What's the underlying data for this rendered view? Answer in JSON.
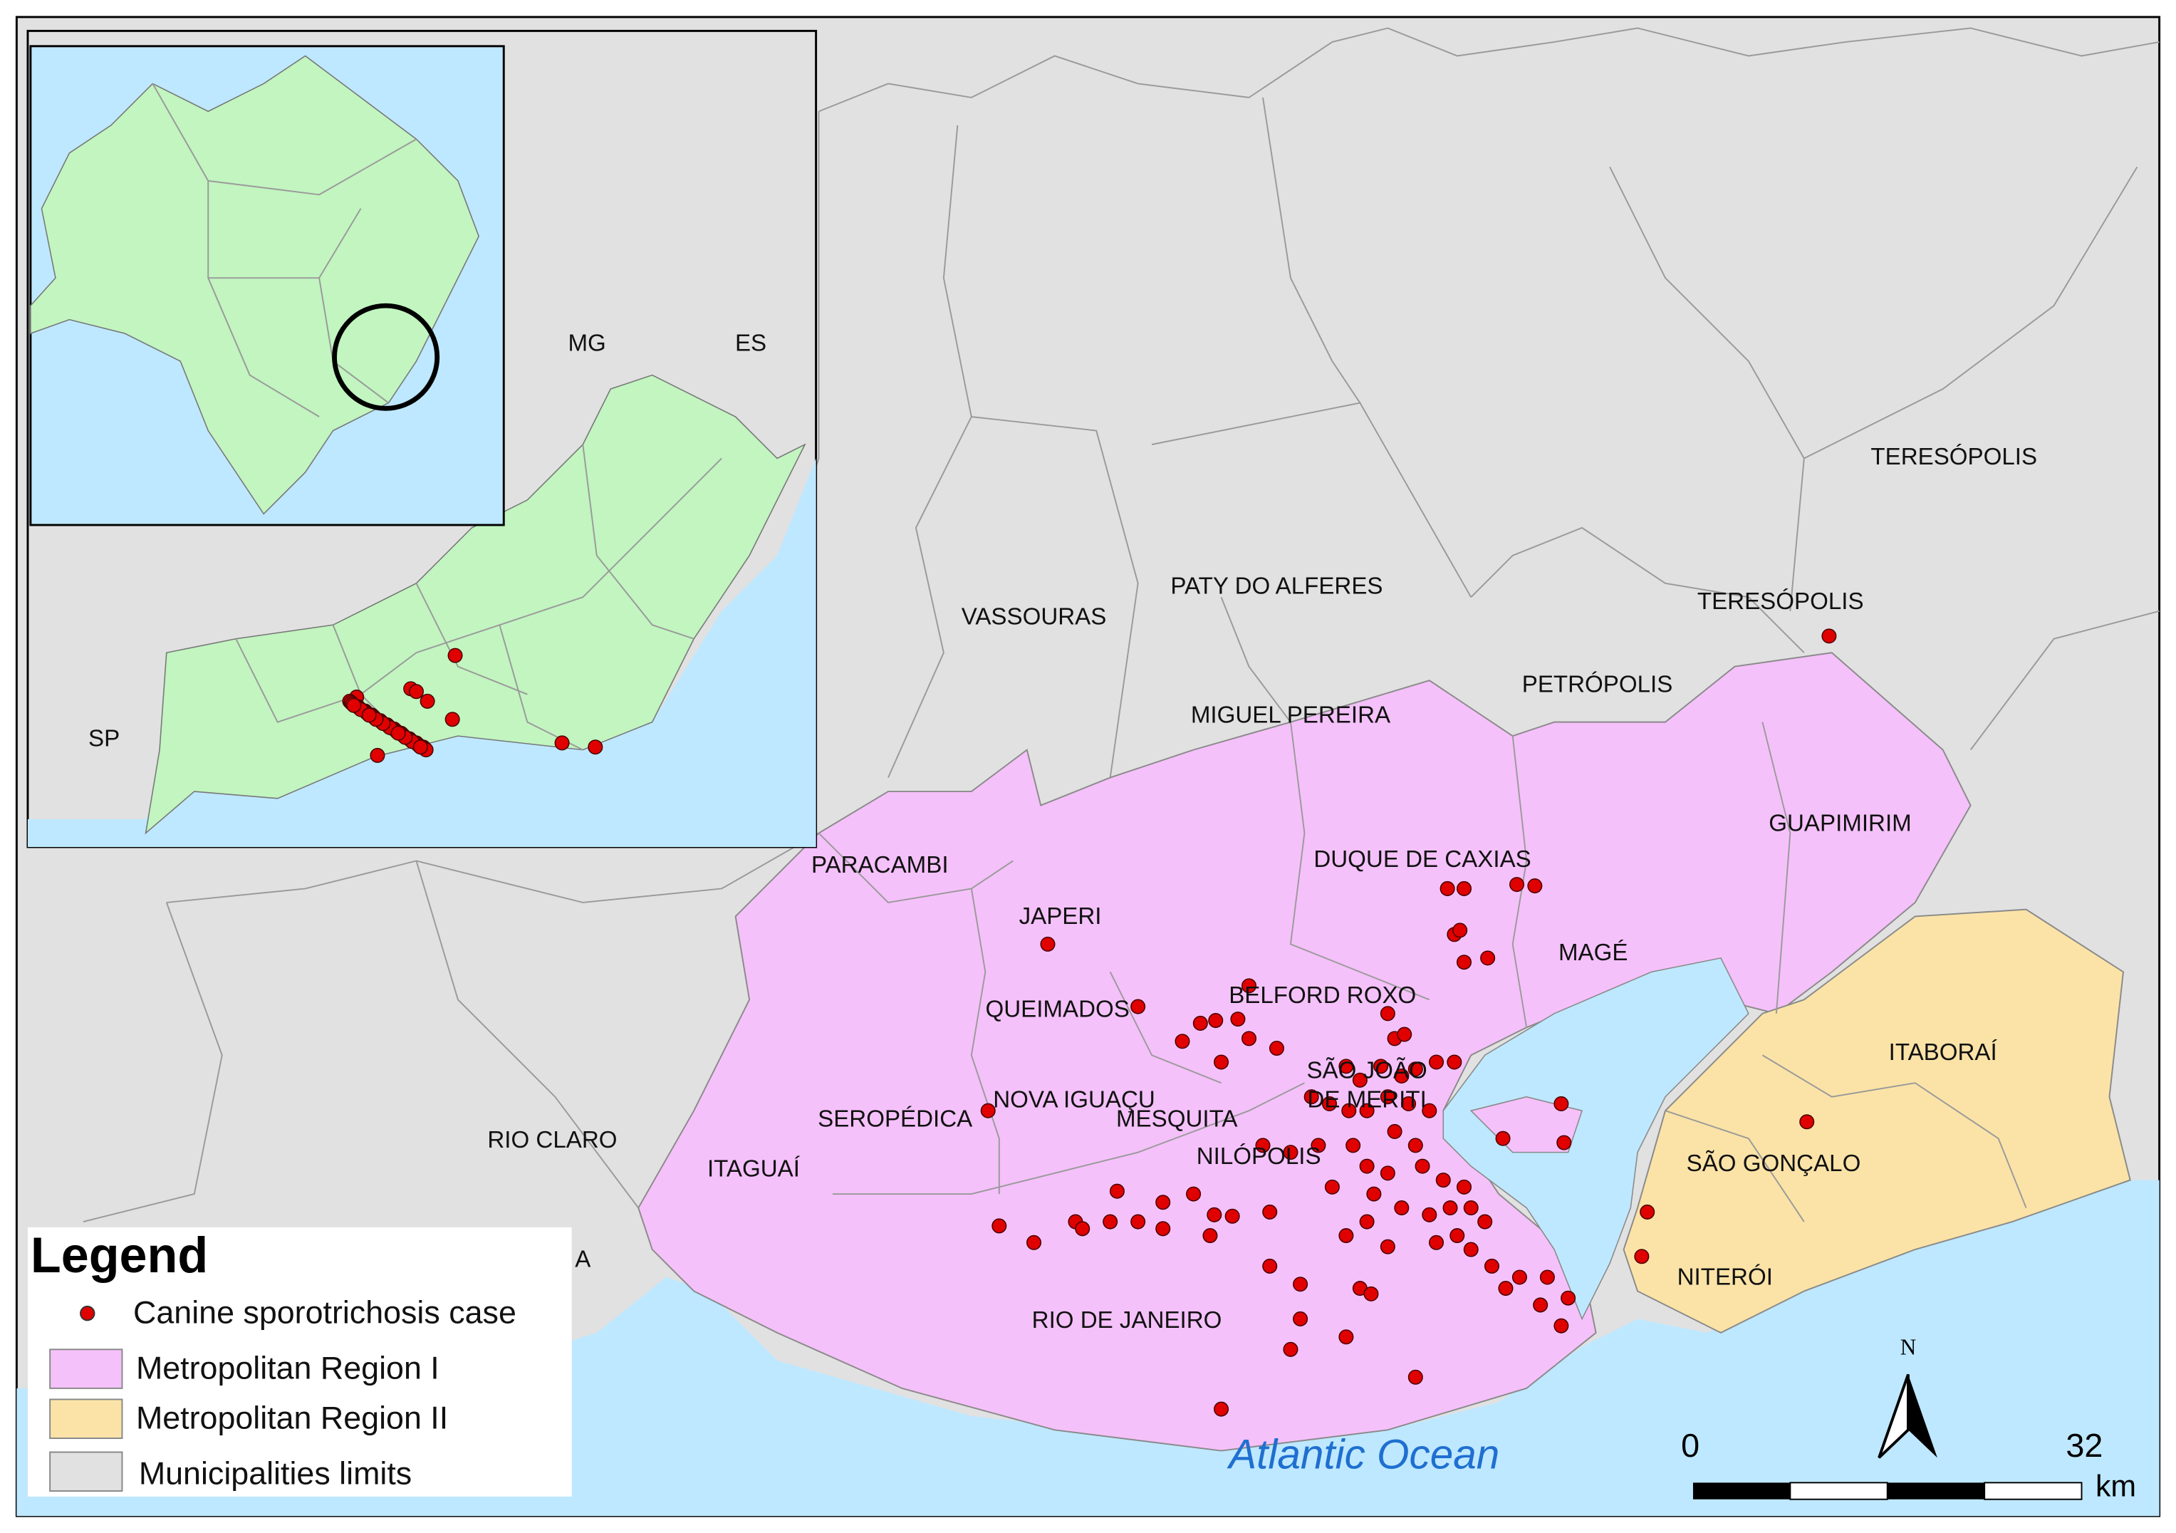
{
  "states": [
    "MG",
    "ES",
    "SP"
  ],
  "municipalities": [
    "TERESÓPOLIS",
    "TERESÓPOLIS",
    "PATY DO ALFERES",
    "VASSOURAS",
    "PETRÓPOLIS",
    "MIGUEL PEREIRA",
    "DUQUE DE CAXIAS",
    "GUAPIMIRIM",
    "PARACAMBI",
    "JAPERI",
    "MAGÉ",
    "BELFORD ROXO",
    "QUEIMADOS",
    "ITABORAÍ",
    "SÃO JOÃO",
    "DE MERITI",
    "NOVA IGUAÇU",
    "MESQUITA",
    "SEROPÉDICA",
    "RIO CLARO",
    "NILÓPOLIS",
    "ITAGUAÍ",
    "SÃO GONÇALO",
    "NITERÓI",
    "RIO DE JANEIRO",
    "A"
  ],
  "ocean": "Atlantic Ocean",
  "legend": {
    "title": "Legend",
    "items": [
      "Canine sporotrichosis case",
      "Metropolitan Region I",
      "Metropolitan Region II",
      "Municipalities limits"
    ]
  },
  "scale_bar": {
    "ticks": [
      0,
      32
    ],
    "unit": "km"
  },
  "north": "N"
}
